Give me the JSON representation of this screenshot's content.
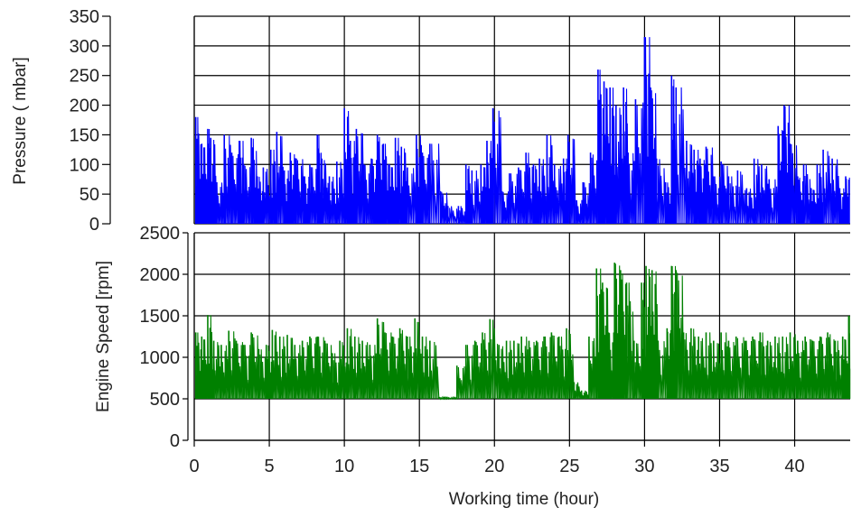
{
  "chart_data": [
    {
      "type": "line",
      "title": "",
      "ylabel": "Pressure ( mbar]",
      "xlabel": "",
      "xlim": [
        0,
        43.7
      ],
      "ylim": [
        0,
        350
      ],
      "yticks": [
        0,
        50,
        100,
        150,
        200,
        250,
        300,
        350
      ],
      "xticks": [
        0,
        5,
        10,
        15,
        20,
        25,
        30,
        35,
        40
      ],
      "grid": true,
      "color": "#0000ff",
      "series": [
        {
          "values": [
            [
              0.1,
              180
            ],
            [
              0.5,
              135
            ],
            [
              0.9,
              160
            ],
            [
              1.1,
              145
            ],
            [
              1.5,
              70
            ],
            [
              2.0,
              150
            ],
            [
              2.5,
              120
            ],
            [
              3.0,
              140
            ],
            [
              3.3,
              100
            ],
            [
              3.8,
              145
            ],
            [
              4.2,
              80
            ],
            [
              4.6,
              95
            ],
            [
              5.1,
              125
            ],
            [
              5.5,
              155
            ],
            [
              6.0,
              90
            ],
            [
              6.4,
              120
            ],
            [
              6.8,
              110
            ],
            [
              7.3,
              80
            ],
            [
              7.7,
              100
            ],
            [
              8.2,
              150
            ],
            [
              8.5,
              110
            ],
            [
              9.0,
              80
            ],
            [
              9.5,
              105
            ],
            [
              10.0,
              195
            ],
            [
              10.4,
              140
            ],
            [
              10.8,
              160
            ],
            [
              11.3,
              100
            ],
            [
              11.8,
              110
            ],
            [
              12.2,
              150
            ],
            [
              12.6,
              135
            ],
            [
              13.0,
              100
            ],
            [
              13.4,
              145
            ],
            [
              13.8,
              130
            ],
            [
              14.2,
              95
            ],
            [
              14.8,
              150
            ],
            [
              15.2,
              120
            ],
            [
              15.7,
              135
            ],
            [
              16.4,
              55
            ],
            [
              16.9,
              30
            ],
            [
              17.6,
              30
            ],
            [
              18.1,
              100
            ],
            [
              18.5,
              90
            ],
            [
              19.1,
              100
            ],
            [
              19.5,
              140
            ],
            [
              19.9,
              195
            ],
            [
              20.5,
              55
            ],
            [
              21.0,
              85
            ],
            [
              21.6,
              95
            ],
            [
              22.1,
              120
            ],
            [
              22.6,
              100
            ],
            [
              23.0,
              110
            ],
            [
              23.5,
              150
            ],
            [
              24.0,
              100
            ],
            [
              24.6,
              110
            ],
            [
              24.9,
              150
            ],
            [
              25.4,
              40
            ],
            [
              25.9,
              70
            ],
            [
              26.4,
              120
            ],
            [
              26.9,
              260
            ],
            [
              27.3,
              240
            ],
            [
              27.7,
              230
            ],
            [
              28.1,
              200
            ],
            [
              28.6,
              230
            ],
            [
              28.9,
              120
            ],
            [
              29.4,
              210
            ],
            [
              30.0,
              315
            ],
            [
              30.4,
              230
            ],
            [
              30.8,
              110
            ],
            [
              31.4,
              70
            ],
            [
              31.8,
              250
            ],
            [
              32.1,
              230
            ],
            [
              32.8,
              140
            ],
            [
              33.3,
              125
            ],
            [
              33.7,
              110
            ],
            [
              34.1,
              130
            ],
            [
              34.6,
              80
            ],
            [
              35.1,
              105
            ],
            [
              35.6,
              80
            ],
            [
              36.2,
              90
            ],
            [
              36.8,
              60
            ],
            [
              37.3,
              110
            ],
            [
              37.8,
              100
            ],
            [
              38.3,
              75
            ],
            [
              38.9,
              165
            ],
            [
              39.3,
              200
            ],
            [
              39.7,
              135
            ],
            [
              40.2,
              80
            ],
            [
              40.6,
              100
            ],
            [
              41.1,
              60
            ],
            [
              41.5,
              100
            ],
            [
              41.9,
              125
            ],
            [
              42.5,
              110
            ],
            [
              43.0,
              60
            ],
            [
              43.4,
              80
            ]
          ]
        }
      ]
    },
    {
      "type": "line",
      "title": "",
      "ylabel": "Engine Speed [rpm]",
      "xlabel": "Working time (hour)",
      "xlim": [
        0,
        43.7
      ],
      "ylim": [
        0,
        2500
      ],
      "yticks": [
        0,
        500,
        1000,
        1500,
        2000,
        2500
      ],
      "xticks": [
        0,
        5,
        10,
        15,
        20,
        25,
        30,
        35,
        40
      ],
      "grid": true,
      "color": "#008000",
      "series": [
        {
          "values": [
            [
              0.1,
              1300
            ],
            [
              0.5,
              1250
            ],
            [
              0.9,
              1510
            ],
            [
              1.3,
              1200
            ],
            [
              1.8,
              1150
            ],
            [
              2.3,
              1320
            ],
            [
              2.8,
              1200
            ],
            [
              3.3,
              1150
            ],
            [
              3.8,
              1300
            ],
            [
              4.3,
              1100
            ],
            [
              4.8,
              1150
            ],
            [
              5.2,
              1330
            ],
            [
              5.7,
              1250
            ],
            [
              6.2,
              1270
            ],
            [
              6.7,
              1150
            ],
            [
              7.2,
              1200
            ],
            [
              7.7,
              1250
            ],
            [
              8.2,
              1250
            ],
            [
              8.7,
              1200
            ],
            [
              9.2,
              1050
            ],
            [
              9.7,
              1200
            ],
            [
              10.2,
              1350
            ],
            [
              10.7,
              1250
            ],
            [
              11.2,
              1200
            ],
            [
              11.7,
              1150
            ],
            [
              12.2,
              1470
            ],
            [
              12.7,
              1300
            ],
            [
              13.2,
              1250
            ],
            [
              13.7,
              1350
            ],
            [
              14.2,
              1250
            ],
            [
              14.7,
              1470
            ],
            [
              15.2,
              1250
            ],
            [
              15.7,
              1200
            ],
            [
              16.3,
              520
            ],
            [
              16.8,
              520
            ],
            [
              17.5,
              900
            ],
            [
              18.1,
              1150
            ],
            [
              18.7,
              1200
            ],
            [
              19.2,
              1300
            ],
            [
              19.7,
              1460
            ],
            [
              20.3,
              1150
            ],
            [
              20.8,
              1200
            ],
            [
              21.3,
              1200
            ],
            [
              21.8,
              1250
            ],
            [
              22.3,
              1200
            ],
            [
              22.8,
              1200
            ],
            [
              23.3,
              1250
            ],
            [
              23.8,
              1300
            ],
            [
              24.3,
              1250
            ],
            [
              24.8,
              1350
            ],
            [
              25.3,
              700
            ],
            [
              25.8,
              600
            ],
            [
              26.3,
              1250
            ],
            [
              26.8,
              2070
            ],
            [
              27.2,
              1900
            ],
            [
              27.6,
              1300
            ],
            [
              28.0,
              2140
            ],
            [
              28.4,
              2050
            ],
            [
              28.8,
              1900
            ],
            [
              29.3,
              1200
            ],
            [
              29.8,
              1900
            ],
            [
              30.1,
              2100
            ],
            [
              30.5,
              2050
            ],
            [
              30.9,
              1200
            ],
            [
              31.5,
              1350
            ],
            [
              31.8,
              2100
            ],
            [
              32.1,
              2050
            ],
            [
              32.6,
              1300
            ],
            [
              33.1,
              1350
            ],
            [
              33.6,
              1250
            ],
            [
              34.1,
              1300
            ],
            [
              34.6,
              1200
            ],
            [
              35.1,
              1300
            ],
            [
              35.6,
              1200
            ],
            [
              36.1,
              1250
            ],
            [
              36.7,
              1200
            ],
            [
              37.2,
              1250
            ],
            [
              37.7,
              1300
            ],
            [
              38.2,
              1200
            ],
            [
              38.7,
              1250
            ],
            [
              39.2,
              1250
            ],
            [
              39.7,
              1300
            ],
            [
              40.2,
              1200
            ],
            [
              40.7,
              1250
            ],
            [
              41.2,
              1200
            ],
            [
              41.7,
              1250
            ],
            [
              42.2,
              1300
            ],
            [
              42.7,
              1200
            ],
            [
              43.2,
              1250
            ],
            [
              43.6,
              1500
            ]
          ]
        }
      ]
    }
  ]
}
